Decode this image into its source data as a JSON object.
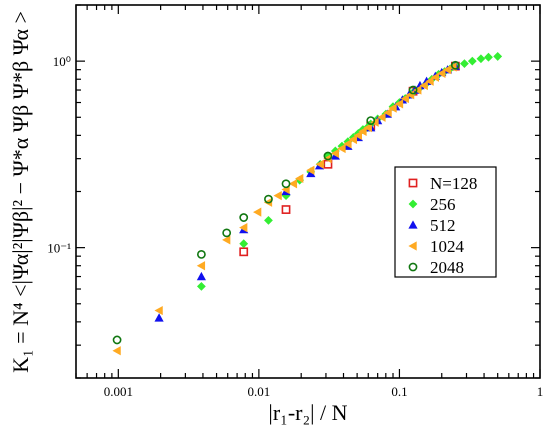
{
  "chart_data": {
    "type": "scatter",
    "xlabel": "|r₁-r₂| / N",
    "ylabel": "K₁ = N⁴ <|Ψα|²|Ψβ|² − Ψ*α Ψβ Ψ*β Ψα >",
    "xscale": "log",
    "yscale": "log",
    "xlim": [
      0.0005,
      1
    ],
    "ylim": [
      0.02,
      2
    ],
    "x_ticks": [
      {
        "value": 0.001,
        "label": "0.001"
      },
      {
        "value": 0.01,
        "label": "0.01"
      },
      {
        "value": 0.1,
        "label": "0.1"
      },
      {
        "value": 1,
        "label": "1"
      }
    ],
    "y_ticks": [
      {
        "value": 0.1,
        "label": "10⁻¹"
      },
      {
        "value": 1,
        "label": "10⁰"
      }
    ],
    "legend_position": "right",
    "series": [
      {
        "name": "N=128",
        "color": "#e02020",
        "marker": "open-square",
        "points": [
          {
            "x": 0.0078,
            "y": 0.095
          },
          {
            "x": 0.0156,
            "y": 0.16
          },
          {
            "x": 0.031,
            "y": 0.28
          },
          {
            "x": 0.0625,
            "y": 0.45
          },
          {
            "x": 0.125,
            "y": 0.69
          },
          {
            "x": 0.25,
            "y": 0.94
          }
        ]
      },
      {
        "name": "256",
        "color": "#33ee33",
        "marker": "diamond",
        "points": [
          {
            "x": 0.0039,
            "y": 0.062
          },
          {
            "x": 0.0078,
            "y": 0.105
          },
          {
            "x": 0.0117,
            "y": 0.14
          },
          {
            "x": 0.0156,
            "y": 0.19
          },
          {
            "x": 0.0195,
            "y": 0.23
          },
          {
            "x": 0.0234,
            "y": 0.255
          },
          {
            "x": 0.0273,
            "y": 0.28
          },
          {
            "x": 0.031,
            "y": 0.31
          },
          {
            "x": 0.035,
            "y": 0.33
          },
          {
            "x": 0.039,
            "y": 0.35
          },
          {
            "x": 0.043,
            "y": 0.37
          },
          {
            "x": 0.047,
            "y": 0.39
          },
          {
            "x": 0.051,
            "y": 0.41
          },
          {
            "x": 0.055,
            "y": 0.43
          },
          {
            "x": 0.059,
            "y": 0.44
          },
          {
            "x": 0.0625,
            "y": 0.46
          },
          {
            "x": 0.07,
            "y": 0.49
          },
          {
            "x": 0.08,
            "y": 0.52
          },
          {
            "x": 0.09,
            "y": 0.57
          },
          {
            "x": 0.1,
            "y": 0.6
          },
          {
            "x": 0.11,
            "y": 0.63
          },
          {
            "x": 0.125,
            "y": 0.68
          },
          {
            "x": 0.14,
            "y": 0.72
          },
          {
            "x": 0.156,
            "y": 0.76
          },
          {
            "x": 0.17,
            "y": 0.8
          },
          {
            "x": 0.19,
            "y": 0.85
          },
          {
            "x": 0.21,
            "y": 0.88
          },
          {
            "x": 0.23,
            "y": 0.91
          },
          {
            "x": 0.25,
            "y": 0.94
          },
          {
            "x": 0.29,
            "y": 0.97
          },
          {
            "x": 0.33,
            "y": 1.0
          },
          {
            "x": 0.38,
            "y": 1.03
          },
          {
            "x": 0.43,
            "y": 1.05
          },
          {
            "x": 0.5,
            "y": 1.06
          }
        ]
      },
      {
        "name": "512",
        "color": "#1010ee",
        "marker": "triangle-up",
        "points": [
          {
            "x": 0.00195,
            "y": 0.042
          },
          {
            "x": 0.0039,
            "y": 0.07
          },
          {
            "x": 0.0078,
            "y": 0.125
          },
          {
            "x": 0.0156,
            "y": 0.2
          },
          {
            "x": 0.0234,
            "y": 0.25
          },
          {
            "x": 0.027,
            "y": 0.275
          },
          {
            "x": 0.035,
            "y": 0.31
          },
          {
            "x": 0.043,
            "y": 0.35
          },
          {
            "x": 0.051,
            "y": 0.39
          },
          {
            "x": 0.0625,
            "y": 0.44
          },
          {
            "x": 0.07,
            "y": 0.48
          },
          {
            "x": 0.082,
            "y": 0.52
          },
          {
            "x": 0.094,
            "y": 0.57
          },
          {
            "x": 0.105,
            "y": 0.62
          },
          {
            "x": 0.117,
            "y": 0.66
          },
          {
            "x": 0.129,
            "y": 0.7
          },
          {
            "x": 0.14,
            "y": 0.74
          },
          {
            "x": 0.156,
            "y": 0.78
          },
          {
            "x": 0.18,
            "y": 0.83
          },
          {
            "x": 0.2,
            "y": 0.87
          },
          {
            "x": 0.22,
            "y": 0.9
          },
          {
            "x": 0.25,
            "y": 0.94
          }
        ]
      },
      {
        "name": "1024",
        "color": "#ffaa22",
        "marker": "triangle-left",
        "points": [
          {
            "x": 0.00098,
            "y": 0.028
          },
          {
            "x": 0.00195,
            "y": 0.046
          },
          {
            "x": 0.0039,
            "y": 0.08
          },
          {
            "x": 0.0059,
            "y": 0.11
          },
          {
            "x": 0.0078,
            "y": 0.128
          },
          {
            "x": 0.0098,
            "y": 0.155
          },
          {
            "x": 0.0117,
            "y": 0.175
          },
          {
            "x": 0.0137,
            "y": 0.19
          },
          {
            "x": 0.0156,
            "y": 0.205
          },
          {
            "x": 0.0176,
            "y": 0.22
          },
          {
            "x": 0.0195,
            "y": 0.235
          },
          {
            "x": 0.0234,
            "y": 0.26
          },
          {
            "x": 0.0273,
            "y": 0.28
          },
          {
            "x": 0.031,
            "y": 0.3
          },
          {
            "x": 0.035,
            "y": 0.32
          },
          {
            "x": 0.039,
            "y": 0.34
          },
          {
            "x": 0.043,
            "y": 0.36
          },
          {
            "x": 0.047,
            "y": 0.38
          },
          {
            "x": 0.051,
            "y": 0.4
          },
          {
            "x": 0.055,
            "y": 0.42
          },
          {
            "x": 0.06,
            "y": 0.44
          },
          {
            "x": 0.067,
            "y": 0.47
          },
          {
            "x": 0.075,
            "y": 0.5
          },
          {
            "x": 0.083,
            "y": 0.53
          },
          {
            "x": 0.09,
            "y": 0.56
          },
          {
            "x": 0.1,
            "y": 0.59
          },
          {
            "x": 0.11,
            "y": 0.63
          },
          {
            "x": 0.12,
            "y": 0.66
          },
          {
            "x": 0.135,
            "y": 0.7
          },
          {
            "x": 0.15,
            "y": 0.74
          },
          {
            "x": 0.165,
            "y": 0.78
          },
          {
            "x": 0.18,
            "y": 0.82
          },
          {
            "x": 0.2,
            "y": 0.86
          },
          {
            "x": 0.22,
            "y": 0.9
          },
          {
            "x": 0.24,
            "y": 0.93
          }
        ]
      },
      {
        "name": "2048",
        "color": "#117711",
        "marker": "open-circle",
        "points": [
          {
            "x": 0.00098,
            "y": 0.032
          },
          {
            "x": 0.0039,
            "y": 0.092
          },
          {
            "x": 0.0059,
            "y": 0.12
          },
          {
            "x": 0.0078,
            "y": 0.145
          },
          {
            "x": 0.0117,
            "y": 0.182
          },
          {
            "x": 0.0156,
            "y": 0.22
          },
          {
            "x": 0.031,
            "y": 0.31
          },
          {
            "x": 0.0625,
            "y": 0.48
          },
          {
            "x": 0.125,
            "y": 0.7
          },
          {
            "x": 0.25,
            "y": 0.95
          }
        ]
      }
    ]
  }
}
